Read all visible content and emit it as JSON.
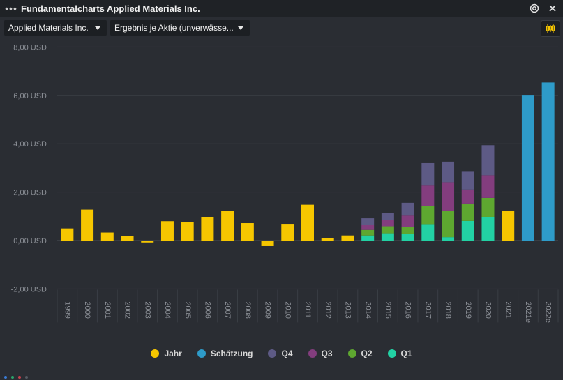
{
  "window": {
    "title": "Fundamentalcharts Applied Materials Inc."
  },
  "toolbar": {
    "company_dropdown": "Applied Materials Inc.",
    "metric_dropdown": "Ergebnis je Aktie (unverwässe..."
  },
  "icons": {
    "menu": "more-dots-icon",
    "target": "target-icon",
    "close": "close-icon",
    "chart_type": "candlestick-icon"
  },
  "colors": {
    "Jahr": "#f6c600",
    "Schätzung": "#2e9bc9",
    "Q4": "#5d5a85",
    "Q3": "#833d7e",
    "Q2": "#5ea730",
    "Q1": "#22d1a4",
    "background": "#2a2d33"
  },
  "chart_data": {
    "type": "bar",
    "y_ticks": [
      "8,00 USD",
      "6,00 USD",
      "4,00 USD",
      "2,00 USD",
      "0,00 USD",
      "-2,00 USD"
    ],
    "y_tick_values": [
      8,
      6,
      4,
      2,
      0,
      -2
    ],
    "ylim": [
      -2,
      8
    ],
    "grid": true,
    "legend_position": "bottom",
    "categories": [
      "1999",
      "2000",
      "2001",
      "2002",
      "2003",
      "2004",
      "2005",
      "2006",
      "2007",
      "2008",
      "2009",
      "2010",
      "2011",
      "2012",
      "2013",
      "2014",
      "2015",
      "2016",
      "2017",
      "2018",
      "2019",
      "2020",
      "2021",
      "2021e",
      "2022e"
    ],
    "series": [
      {
        "name": "Jahr",
        "values": [
          0.5,
          1.28,
          0.33,
          0.18,
          -0.08,
          0.8,
          0.75,
          0.98,
          1.22,
          0.72,
          -0.23,
          0.69,
          1.48,
          0.09,
          0.21,
          null,
          null,
          null,
          null,
          null,
          null,
          null,
          1.24,
          null,
          null
        ]
      },
      {
        "name": "Schätzung",
        "values": [
          null,
          null,
          null,
          null,
          null,
          null,
          null,
          null,
          null,
          null,
          null,
          null,
          null,
          null,
          null,
          null,
          null,
          null,
          null,
          null,
          null,
          null,
          null,
          6.02,
          6.53
        ]
      },
      {
        "name": "Q1",
        "values": [
          null,
          null,
          null,
          null,
          null,
          null,
          null,
          null,
          null,
          null,
          null,
          null,
          null,
          null,
          null,
          0.21,
          0.3,
          0.27,
          0.68,
          0.14,
          0.81,
          0.98,
          null,
          null,
          null
        ]
      },
      {
        "name": "Q2",
        "values": [
          null,
          null,
          null,
          null,
          null,
          null,
          null,
          null,
          null,
          null,
          null,
          null,
          null,
          null,
          null,
          0.23,
          0.29,
          0.29,
          0.74,
          1.09,
          0.72,
          0.78,
          null,
          null,
          null
        ]
      },
      {
        "name": "Q3",
        "values": [
          null,
          null,
          null,
          null,
          null,
          null,
          null,
          null,
          null,
          null,
          null,
          null,
          null,
          null,
          null,
          0.22,
          0.25,
          0.47,
          0.85,
          1.18,
          0.58,
          0.94,
          null,
          null,
          null
        ]
      },
      {
        "name": "Q4",
        "values": [
          null,
          null,
          null,
          null,
          null,
          null,
          null,
          null,
          null,
          null,
          null,
          null,
          null,
          null,
          null,
          0.26,
          0.29,
          0.53,
          0.93,
          0.85,
          0.76,
          1.24,
          null,
          null,
          null
        ]
      }
    ]
  }
}
